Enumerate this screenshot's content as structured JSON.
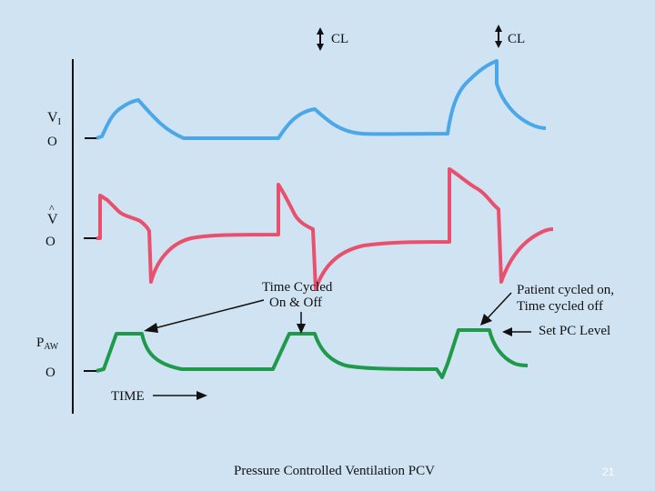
{
  "slide": {
    "caption": "Pressure Controlled Ventilation PCV",
    "page_number": "21"
  },
  "labels": {
    "cl_left": "CL",
    "cl_right": "CL",
    "vi_main": "V",
    "vi_sub": "I",
    "flow_label": "V",
    "flow_hat": "^",
    "paw_main": "P",
    "paw_sub": "AW",
    "zero_vi": "O",
    "zero_flow": "O",
    "zero_paw": "O",
    "time_cycled_1": "Time Cycled",
    "time_cycled_2": "On & Off",
    "patient_cycled_1": "Patient cycled on,",
    "patient_cycled_2": "Time cycled off",
    "set_pc_level": "Set PC Level",
    "time_axis": "TIME"
  },
  "colors": {
    "background": "#cfe3f3",
    "volume": "#4aa8e8",
    "flow": "#e8506e",
    "pressure": "#1e9a4a",
    "ink": "#111111"
  }
}
